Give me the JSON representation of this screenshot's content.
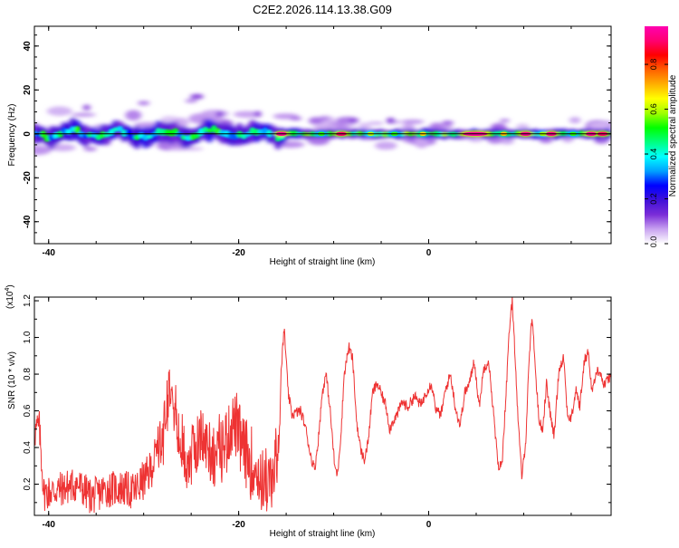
{
  "title": "C2E2.2026.114.13.38.G09",
  "chart_data": [
    {
      "type": "heatmap",
      "title": "C2E2.2026.114.13.38.G09",
      "xlabel": "Height of straight line (km)",
      "ylabel": "Frequency (Hz)",
      "xlim": [
        -41.5,
        19.2
      ],
      "ylim": [
        -50,
        49
      ],
      "x_ticks": [
        -40,
        -20,
        0
      ],
      "y_ticks": [
        -40,
        -20,
        0,
        20,
        40
      ],
      "band_center_hz": 0,
      "hot_spots": [
        {
          "x": -15.5,
          "amp": 0.97
        },
        {
          "x": -11.3,
          "amp": 0.55
        },
        {
          "x": -9.2,
          "amp": 0.93
        },
        {
          "x": -6.1,
          "amp": 0.62
        },
        {
          "x": -3.6,
          "amp": 0.55
        },
        {
          "x": -0.6,
          "amp": 0.7
        },
        {
          "x": 4.9,
          "amp": 0.98
        },
        {
          "x": 7.9,
          "amp": 0.72
        },
        {
          "x": 10.2,
          "amp": 0.97
        },
        {
          "x": 12.0,
          "amp": 0.6
        },
        {
          "x": 12.9,
          "amp": 0.96
        },
        {
          "x": 15.2,
          "amp": 0.55
        },
        {
          "x": 17.1,
          "amp": 0.97
        },
        {
          "x": 18.3,
          "amp": 0.93
        }
      ],
      "colorbar": {
        "label": "Normalized spectral amplitude",
        "range": [
          0,
          0.97
        ],
        "ticks": [
          "0.0",
          "0.2",
          "0.4",
          "0.6",
          "0.8"
        ],
        "tick_values": [
          0,
          0.2,
          0.4,
          0.6,
          0.8
        ],
        "colors": [
          "#ffffff",
          "#c8a2f0",
          "#7b2dd8",
          "#3f10d8",
          "#0000ff",
          "#00a0ff",
          "#00ffff",
          "#00ff80",
          "#00ff00",
          "#a0ff00",
          "#ffff00",
          "#ffb000",
          "#ff6000",
          "#ff0000",
          "#ff0070",
          "#ff00b0"
        ]
      }
    },
    {
      "type": "line",
      "xlabel": "Height of straight line (km)",
      "ylabel": "SNR (10 * v/v)",
      "y_multiplier": "(x10",
      "y_multiplier_exp": "4",
      "y_multiplier_close": ")",
      "xlim": [
        -41.5,
        19.2
      ],
      "ylim": [
        0.03,
        1.22
      ],
      "x_ticks": [
        -40,
        -20,
        0
      ],
      "y_ticks": [
        "0.2",
        "0.4",
        "0.6",
        "0.8",
        "1.0",
        "1.2"
      ],
      "y_tick_values": [
        0.2,
        0.4,
        0.6,
        0.8,
        1.0,
        1.2
      ],
      "series_color": "#ee3333",
      "anchors": [
        [
          -41.5,
          0.48
        ],
        [
          -41.0,
          0.52
        ],
        [
          -40.5,
          0.15
        ],
        [
          -39.0,
          0.17
        ],
        [
          -37.0,
          0.2
        ],
        [
          -35.5,
          0.13
        ],
        [
          -34.0,
          0.17
        ],
        [
          -32.5,
          0.18
        ],
        [
          -31.0,
          0.16
        ],
        [
          -29.5,
          0.25
        ],
        [
          -28.0,
          0.45
        ],
        [
          -27.4,
          0.72
        ],
        [
          -27.0,
          0.82
        ],
        [
          -26.5,
          0.48
        ],
        [
          -25.5,
          0.32
        ],
        [
          -24.0,
          0.45
        ],
        [
          -22.5,
          0.36
        ],
        [
          -21.5,
          0.42
        ],
        [
          -20.5,
          0.55
        ],
        [
          -19.5,
          0.38
        ],
        [
          -18.5,
          0.3
        ],
        [
          -17.5,
          0.22
        ],
        [
          -16.5,
          0.2
        ],
        [
          -15.8,
          0.42
        ],
        [
          -15.5,
          0.85
        ],
        [
          -15.2,
          1.05
        ],
        [
          -14.8,
          0.7
        ],
        [
          -14.4,
          0.58
        ],
        [
          -13.5,
          0.6
        ],
        [
          -13.0,
          0.52
        ],
        [
          -12.4,
          0.35
        ],
        [
          -12.0,
          0.28
        ],
        [
          -11.6,
          0.45
        ],
        [
          -11.2,
          0.7
        ],
        [
          -10.8,
          0.8
        ],
        [
          -10.4,
          0.62
        ],
        [
          -9.9,
          0.3
        ],
        [
          -9.6,
          0.25
        ],
        [
          -9.2,
          0.5
        ],
        [
          -8.9,
          0.8
        ],
        [
          -8.4,
          0.95
        ],
        [
          -8.0,
          0.88
        ],
        [
          -7.6,
          0.55
        ],
        [
          -7.2,
          0.4
        ],
        [
          -6.8,
          0.33
        ],
        [
          -6.4,
          0.42
        ],
        [
          -5.9,
          0.7
        ],
        [
          -5.4,
          0.75
        ],
        [
          -4.9,
          0.68
        ],
        [
          -4.5,
          0.63
        ],
        [
          -4.1,
          0.5
        ],
        [
          -3.7,
          0.55
        ],
        [
          -3.3,
          0.58
        ],
        [
          -2.8,
          0.65
        ],
        [
          -2.2,
          0.62
        ],
        [
          -1.5,
          0.68
        ],
        [
          -0.8,
          0.63
        ],
        [
          -0.3,
          0.7
        ],
        [
          0.3,
          0.75
        ],
        [
          0.8,
          0.6
        ],
        [
          1.3,
          0.58
        ],
        [
          1.8,
          0.72
        ],
        [
          2.3,
          0.8
        ],
        [
          2.8,
          0.62
        ],
        [
          3.3,
          0.52
        ],
        [
          3.8,
          0.7
        ],
        [
          4.3,
          0.75
        ],
        [
          4.8,
          0.88
        ],
        [
          5.3,
          0.62
        ],
        [
          5.8,
          0.83
        ],
        [
          6.3,
          0.88
        ],
        [
          6.8,
          0.6
        ],
        [
          7.3,
          0.3
        ],
        [
          7.7,
          0.3
        ],
        [
          8.2,
          0.75
        ],
        [
          8.5,
          1.05
        ],
        [
          8.8,
          1.2
        ],
        [
          9.1,
          0.9
        ],
        [
          9.4,
          0.55
        ],
        [
          9.8,
          0.24
        ],
        [
          10.2,
          0.42
        ],
        [
          10.6,
          0.92
        ],
        [
          10.9,
          1.12
        ],
        [
          11.2,
          0.85
        ],
        [
          11.6,
          0.55
        ],
        [
          12.0,
          0.5
        ],
        [
          12.4,
          0.75
        ],
        [
          12.8,
          0.58
        ],
        [
          13.2,
          0.46
        ],
        [
          13.7,
          0.82
        ],
        [
          14.2,
          0.9
        ],
        [
          14.6,
          0.58
        ],
        [
          15.0,
          0.55
        ],
        [
          15.5,
          0.72
        ],
        [
          15.9,
          0.62
        ],
        [
          16.4,
          0.88
        ],
        [
          16.8,
          0.92
        ],
        [
          17.2,
          0.7
        ],
        [
          17.6,
          0.8
        ],
        [
          18.0,
          0.83
        ],
        [
          18.4,
          0.74
        ],
        [
          18.8,
          0.76
        ],
        [
          19.2,
          0.8
        ]
      ]
    }
  ]
}
